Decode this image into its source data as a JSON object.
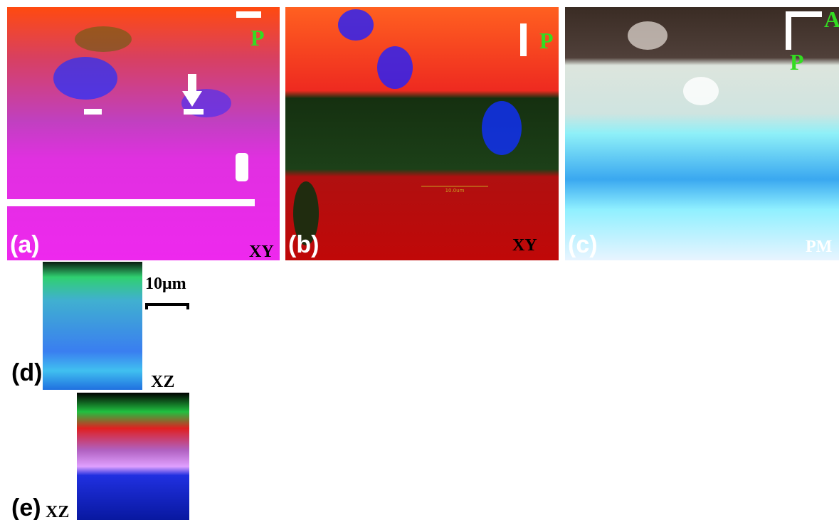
{
  "panels": [
    {
      "label": "(a)",
      "view": "XY",
      "polarizer": "P"
    },
    {
      "label": "(b)",
      "view": "XY",
      "polarizer": "P",
      "scale_text": "10.0um"
    },
    {
      "label": "(c)",
      "view": "PM",
      "analyzer": "A",
      "polarizer": "P"
    },
    {
      "label": "(d)",
      "view": "XZ",
      "scale_text": "10μm"
    },
    {
      "label": "(e)",
      "view": "XZ"
    }
  ]
}
